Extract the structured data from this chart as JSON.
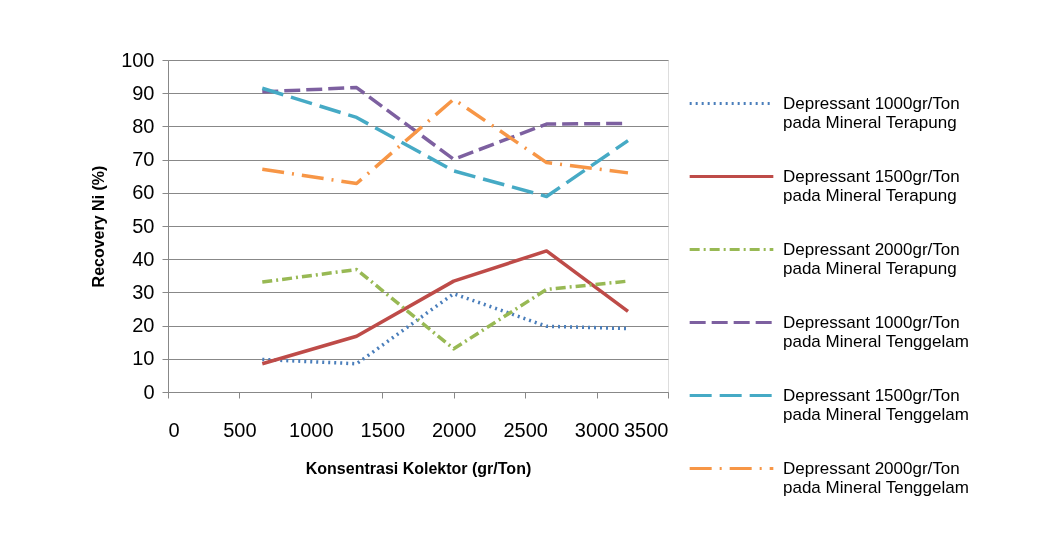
{
  "chart_data": {
    "type": "line",
    "xlabel": "Konsentrasi Kolektor (gr/Ton)",
    "ylabel": "Recovery Ni (%)",
    "x": [
      660,
      1320,
      2000,
      2650,
      3220
    ],
    "series": [
      {
        "name": "Depressant 1000gr/Ton pada Mineral Terapung",
        "color": "#4a7ebb",
        "line_style": "dotted",
        "values": [
          9.8,
          8.5,
          29.6,
          19.8,
          19.1
        ]
      },
      {
        "name": "Depressant 1500gr/Ton pada Mineral Terapung",
        "color": "#be4b48",
        "line_style": "solid",
        "values": [
          8.5,
          16.8,
          33.4,
          42.5,
          24.3
        ]
      },
      {
        "name": "Depressant 2000gr/Ton pada Mineral Terapung",
        "color": "#98b954",
        "line_style": "dashed",
        "values": [
          33.1,
          36.9,
          13,
          30.9,
          33.4
        ]
      },
      {
        "name": "Depressant 1000gr/Ton pada Mineral Tenggelam",
        "color": "#7d60a0",
        "line_style": "dashed",
        "values": [
          90.4,
          91.7,
          70.1,
          80.7,
          80.9
        ]
      },
      {
        "name": "Depressant 1500gr/Ton pada Mineral Tenggelam",
        "color": "#46aac5",
        "line_style": "dashed",
        "values": [
          91.5,
          82.7,
          66.6,
          58.9,
          75.7
        ]
      },
      {
        "name": "Depressant 2000gr/Ton pada Mineral Tenggelam",
        "color": "#f79646",
        "line_style": "dashed",
        "values": [
          67.1,
          62.8,
          88.2,
          69.1,
          66
        ]
      }
    ],
    "xlim": [
      0,
      3500
    ],
    "xticks": [
      0,
      500,
      {
        "value": 1000,
        "label": "1000"
      },
      {
        "value": 1500,
        "label": "1500"
      },
      {
        "value": 2000,
        "label": "2000"
      },
      {
        "value": 2500,
        "label": "2500"
      },
      {
        "value": 3000,
        "label": "3000"
      },
      {
        "value": 3500,
        "label": "3500"
      }
    ],
    "ylim": [
      0,
      100
    ],
    "yticks": [
      0,
      10,
      20,
      30,
      40,
      50,
      60,
      70,
      80,
      90,
      100
    ],
    "grid": "y",
    "legend": "right",
    "marker": "none"
  }
}
